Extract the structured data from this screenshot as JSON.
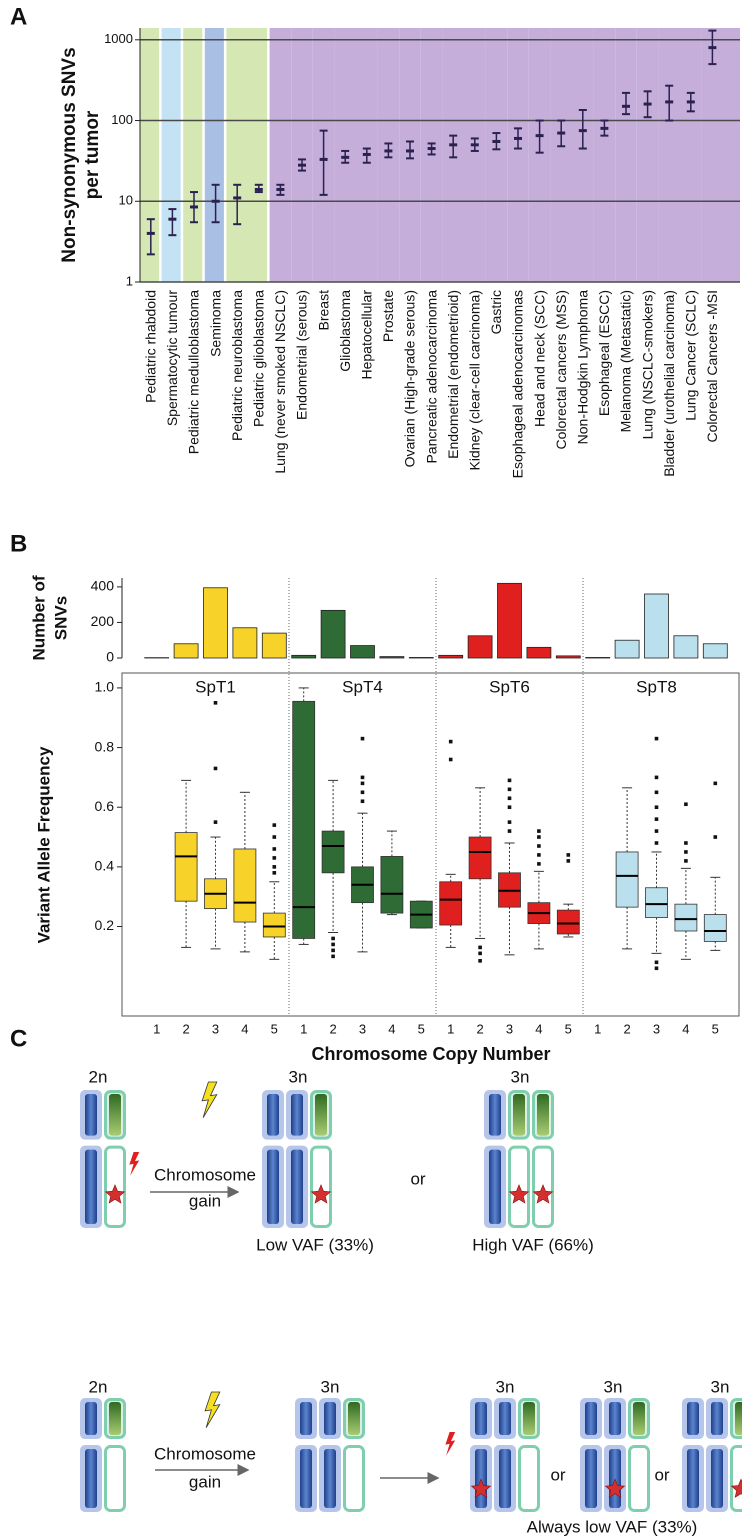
{
  "panel_labels": [
    "A",
    "B",
    "C"
  ],
  "chart_data": [
    {
      "type": "errorbar",
      "ylabel": [
        "Non-synonymous SNVs",
        "per tumor"
      ],
      "categories": [
        "Pediatric rhabdoid",
        "Spermatocytic tumour",
        "Pediatric medulloblastoma",
        "Seminoma",
        "Pediatric neuroblastoma",
        "Pediatric glioblastoma",
        "Lung (never smoked NSCLC)",
        "Endometrial (serous)",
        "Breast",
        "Glioblastoma",
        "Hepatocellular",
        "Prostate",
        "Ovarian (High-grade serous)",
        "Pancreatic adenocarcinoma",
        "Endometrial (endometrioid)",
        "Kidney (clear-cell carcinoma)",
        "Gastric",
        "Esophageal adenocarcinomas",
        "Head and neck (SCC)",
        "Colorectal cancers (MSS)",
        "Non-Hodgkin Lymphoma",
        "Esophageal (ESCC)",
        "Melanoma (Metastatic)",
        "Lung (NSCLC-smokers)",
        "Bladder (urothelial carcinoma)",
        "Lung Cancer (SCLC)",
        "Colorectal Cancers -MSI"
      ],
      "values": [
        4,
        6,
        8.5,
        10,
        11,
        14,
        14,
        28,
        33,
        35,
        38,
        42,
        42,
        45,
        50,
        50,
        55,
        60,
        65,
        70,
        75,
        80,
        150,
        160,
        170,
        170,
        800
      ],
      "low": [
        2.2,
        3.8,
        5.5,
        5.5,
        5.2,
        13,
        12,
        24,
        12,
        30,
        30,
        35,
        34,
        38,
        35,
        42,
        44,
        45,
        40,
        48,
        45,
        65,
        120,
        110,
        100,
        130,
        500
      ],
      "high": [
        6,
        8,
        13,
        16,
        16,
        16,
        16,
        33,
        75,
        42,
        45,
        52,
        55,
        52,
        65,
        60,
        70,
        80,
        100,
        100,
        135,
        100,
        220,
        230,
        270,
        220,
        1300
      ],
      "color": "#2b2150",
      "band_colors": [
        "#d5e8b4",
        "#c3e2f3",
        "#d5e8b4",
        "#a9bfe3",
        "#d5e8b4",
        "#d5e8b4",
        "#c6aedb",
        "#c6aedb",
        "#c6aedb",
        "#c6aedb",
        "#c6aedb",
        "#c6aedb",
        "#c6aedb",
        "#c6aedb",
        "#c6aedb",
        "#c6aedb",
        "#c6aedb",
        "#c6aedb",
        "#c6aedb",
        "#c6aedb",
        "#c6aedb",
        "#c6aedb",
        "#c6aedb",
        "#c6aedb",
        "#c6aedb",
        "#c6aedb",
        "#c6aedb"
      ],
      "ylim": [
        1,
        1400
      ],
      "yticks": [
        1,
        10,
        100,
        1000
      ],
      "log_scale": true,
      "grid": true
    },
    {
      "type": "bar",
      "ylabel": [
        "Number of",
        "SNVs"
      ],
      "series": [
        {
          "color": "#f7d228",
          "values": [
            2,
            80,
            395,
            170,
            140
          ]
        },
        {
          "color": "#2e6b35",
          "values": [
            15,
            268,
            70,
            8,
            3
          ]
        },
        {
          "color": "#e0201e",
          "values": [
            15,
            125,
            420,
            60,
            12
          ]
        },
        {
          "color": "#b9e0ec",
          "values": [
            3,
            100,
            360,
            125,
            80
          ]
        }
      ],
      "ylim": [
        0,
        450
      ],
      "yticks": [
        0,
        200,
        400
      ]
    },
    {
      "type": "box",
      "ylabel": "Variant Allele Frequency",
      "xlabel": "Chromosome Copy Number",
      "categories": [
        "1",
        "2",
        "3",
        "4",
        "5"
      ],
      "series": [
        {
          "name": "SpT1",
          "color": "#f7d228",
          "boxes": [
            null,
            {
              "whislo": 0.13,
              "q1": 0.285,
              "med": 0.435,
              "q3": 0.515,
              "whishi": 0.69,
              "fliers": []
            },
            {
              "whislo": 0.125,
              "q1": 0.26,
              "med": 0.31,
              "q3": 0.36,
              "whishi": 0.5,
              "fliers": [
                0.55,
                0.73,
                0.95
              ]
            },
            {
              "whislo": 0.115,
              "q1": 0.215,
              "med": 0.28,
              "q3": 0.46,
              "whishi": 0.65,
              "fliers": []
            },
            {
              "whislo": 0.09,
              "q1": 0.165,
              "med": 0.2,
              "q3": 0.245,
              "whishi": 0.35,
              "fliers": [
                0.38,
                0.4,
                0.43,
                0.46,
                0.5,
                0.54
              ]
            }
          ]
        },
        {
          "name": "SpT4",
          "color": "#2e6b35",
          "boxes": [
            {
              "whislo": 0.14,
              "q1": 0.16,
              "med": 0.265,
              "q3": 0.955,
              "whishi": 1.0,
              "fliers": []
            },
            {
              "whislo": 0.18,
              "q1": 0.38,
              "med": 0.47,
              "q3": 0.52,
              "whishi": 0.69,
              "fliers": [
                0.1,
                0.12,
                0.14,
                0.16
              ]
            },
            {
              "whislo": 0.115,
              "q1": 0.28,
              "med": 0.34,
              "q3": 0.4,
              "whishi": 0.58,
              "fliers": [
                0.62,
                0.65,
                0.68,
                0.7,
                0.83
              ]
            },
            {
              "whislo": 0.24,
              "q1": 0.245,
              "med": 0.31,
              "q3": 0.435,
              "whishi": 0.52,
              "fliers": []
            },
            {
              "whislo": 0.195,
              "q1": 0.195,
              "med": 0.24,
              "q3": 0.285,
              "whishi": 0.285,
              "fliers": []
            }
          ]
        },
        {
          "name": "SpT6",
          "color": "#e0201e",
          "boxes": [
            {
              "whislo": 0.13,
              "q1": 0.205,
              "med": 0.29,
              "q3": 0.35,
              "whishi": 0.375,
              "fliers": [
                0.76,
                0.82
              ]
            },
            {
              "whislo": 0.16,
              "q1": 0.36,
              "med": 0.45,
              "q3": 0.5,
              "whishi": 0.665,
              "fliers": [
                0.085,
                0.11,
                0.13
              ]
            },
            {
              "whislo": 0.105,
              "q1": 0.265,
              "med": 0.32,
              "q3": 0.38,
              "whishi": 0.48,
              "fliers": [
                0.52,
                0.55,
                0.6,
                0.63,
                0.66,
                0.69
              ]
            },
            {
              "whislo": 0.125,
              "q1": 0.21,
              "med": 0.245,
              "q3": 0.28,
              "whishi": 0.385,
              "fliers": [
                0.41,
                0.44,
                0.47,
                0.5,
                0.52
              ]
            },
            {
              "whislo": 0.165,
              "q1": 0.175,
              "med": 0.21,
              "q3": 0.255,
              "whishi": 0.275,
              "fliers": [
                0.42,
                0.44
              ]
            }
          ]
        },
        {
          "name": "SpT8",
          "color": "#b9e0ec",
          "boxes": [
            null,
            {
              "whislo": 0.125,
              "q1": 0.265,
              "med": 0.37,
              "q3": 0.45,
              "whishi": 0.665,
              "fliers": []
            },
            {
              "whislo": 0.11,
              "q1": 0.23,
              "med": 0.275,
              "q3": 0.33,
              "whishi": 0.45,
              "fliers": [
                0.06,
                0.08,
                0.48,
                0.52,
                0.56,
                0.6,
                0.65,
                0.7,
                0.83
              ]
            },
            {
              "whislo": 0.09,
              "q1": 0.185,
              "med": 0.225,
              "q3": 0.275,
              "whishi": 0.395,
              "fliers": [
                0.42,
                0.45,
                0.48,
                0.61
              ]
            },
            {
              "whislo": 0.12,
              "q1": 0.15,
              "med": 0.185,
              "q3": 0.24,
              "whishi": 0.365,
              "fliers": [
                0.5,
                0.68
              ]
            }
          ]
        }
      ],
      "ylim": [
        -0.1,
        1.05
      ],
      "yticks": [
        0.2,
        0.4,
        0.6,
        0.8,
        {
          "value": 1,
          "label": "1.0"
        }
      ]
    }
  ],
  "panel_c": {
    "row_1": {
      "before": "2n",
      "action": [
        "Chromosome",
        "gain"
      ],
      "after": [
        "3n",
        "3n"
      ],
      "separator": "or",
      "outcomes": [
        "Low VAF (33%)",
        "High VAF (66%)"
      ]
    },
    "row_2": {
      "before": "2n",
      "action": [
        "Chromosome",
        "gain"
      ],
      "intermediate": "3n",
      "after": [
        "3n",
        "3n",
        "3n"
      ],
      "separators": [
        "or",
        "or"
      ],
      "outcome": "Always low VAF (33%)"
    }
  }
}
